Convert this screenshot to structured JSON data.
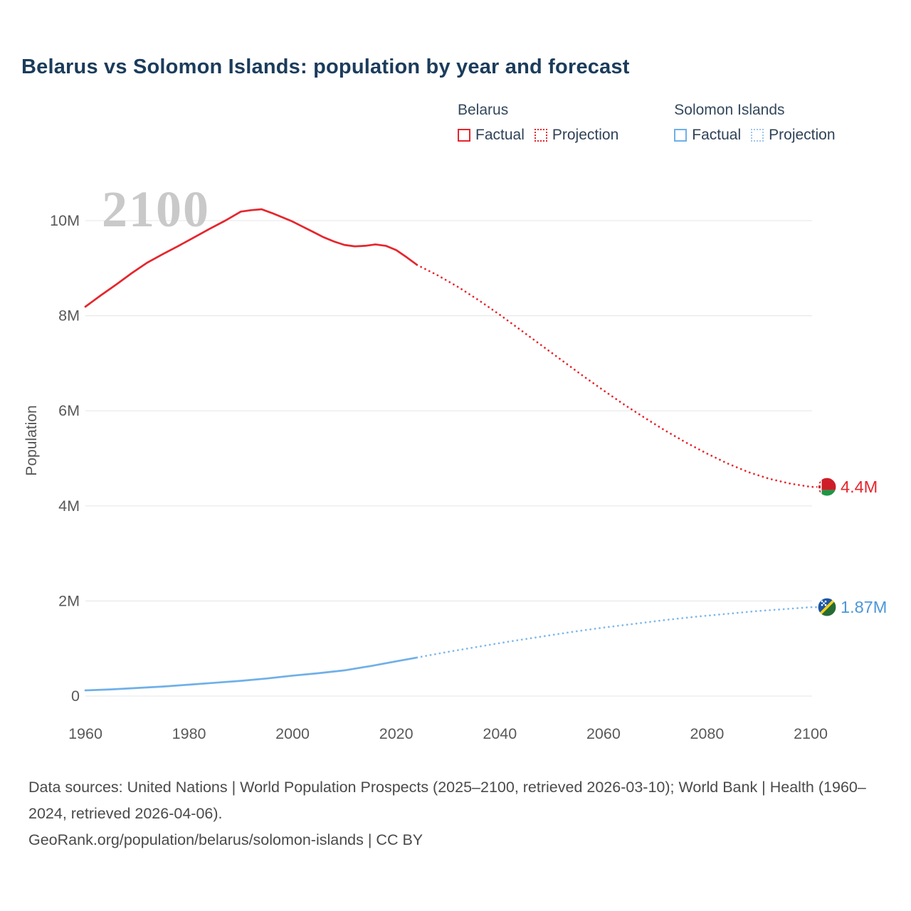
{
  "colors": {
    "belarus": "#e5262d",
    "belarus_label": "#e5262d",
    "solomon_islands": "#6fb0e8",
    "solomon_islands_projection": "#7db8ea",
    "solomon_label": "#4c97d9",
    "title": "#1b3c5c",
    "grid": "#e9e9e9",
    "tick": "#595959",
    "watermark": "#c9c9c9"
  },
  "legend": {
    "belarus": {
      "name": "Belarus",
      "factual": "Factual",
      "projection": "Projection"
    },
    "solomon_islands": {
      "name": "Solomon Islands",
      "factual": "Factual",
      "projection": "Projection"
    }
  },
  "footer": {
    "sources": "Data sources: United Nations | World Population Prospects (2025–2100, retrieved 2026-03-10); World Bank | Health (1960–2024, retrieved 2026-04-06).",
    "attribution": "GeoRank.org/population/belarus/solomon-islands | CC BY"
  },
  "chart_data": {
    "type": "line",
    "title": "Belarus vs Solomon Islands: population by year and forecast",
    "xlabel": "",
    "ylabel": "Population",
    "watermark": "2100",
    "values_unit": "millions",
    "x_ticks": [
      1960,
      1980,
      2000,
      2020,
      2040,
      2060,
      2080,
      2100
    ],
    "y_ticks_millions": [
      0,
      2,
      4,
      6,
      8,
      10
    ],
    "y_tick_labels": [
      "0",
      "2M",
      "4M",
      "6M",
      "8M",
      "10M"
    ],
    "xlim": [
      1958,
      2116
    ],
    "ylim_millions": [
      0,
      10.6
    ],
    "grid": "horizontal",
    "legend_position": "top-right",
    "series": [
      {
        "id": "belarus-factual-line",
        "name": "Belarus Factual",
        "color": "#e5262d",
        "style": "solid",
        "points": [
          [
            1960,
            8.19
          ],
          [
            1963,
            8.43
          ],
          [
            1966,
            8.66
          ],
          [
            1969,
            8.9
          ],
          [
            1972,
            9.12
          ],
          [
            1975,
            9.3
          ],
          [
            1978,
            9.47
          ],
          [
            1981,
            9.65
          ],
          [
            1984,
            9.83
          ],
          [
            1987,
            10.0
          ],
          [
            1990,
            10.19
          ],
          [
            1992,
            10.22
          ],
          [
            1994,
            10.24
          ],
          [
            1996,
            10.16
          ],
          [
            1998,
            10.07
          ],
          [
            2000,
            9.98
          ],
          [
            2002,
            9.87
          ],
          [
            2004,
            9.76
          ],
          [
            2006,
            9.65
          ],
          [
            2008,
            9.56
          ],
          [
            2010,
            9.49
          ],
          [
            2012,
            9.46
          ],
          [
            2014,
            9.47
          ],
          [
            2016,
            9.5
          ],
          [
            2018,
            9.47
          ],
          [
            2020,
            9.38
          ],
          [
            2022,
            9.23
          ],
          [
            2024,
            9.07
          ]
        ]
      },
      {
        "id": "belarus-projection-line",
        "name": "Belarus Projection",
        "color": "#e5262d",
        "style": "dotted",
        "extends_to_flag": true,
        "points": [
          [
            2024,
            9.07
          ],
          [
            2028,
            8.85
          ],
          [
            2032,
            8.6
          ],
          [
            2036,
            8.32
          ],
          [
            2040,
            8.02
          ],
          [
            2044,
            7.7
          ],
          [
            2048,
            7.38
          ],
          [
            2052,
            7.06
          ],
          [
            2056,
            6.74
          ],
          [
            2060,
            6.43
          ],
          [
            2064,
            6.13
          ],
          [
            2068,
            5.85
          ],
          [
            2072,
            5.58
          ],
          [
            2076,
            5.33
          ],
          [
            2080,
            5.1
          ],
          [
            2084,
            4.89
          ],
          [
            2088,
            4.71
          ],
          [
            2092,
            4.57
          ],
          [
            2096,
            4.47
          ],
          [
            2100,
            4.4
          ]
        ]
      },
      {
        "id": "solomon-factual-line",
        "name": "Solomon Islands Factual",
        "color": "#6fb0e8",
        "style": "solid",
        "points": [
          [
            1960,
            0.12
          ],
          [
            1965,
            0.14
          ],
          [
            1970,
            0.17
          ],
          [
            1975,
            0.2
          ],
          [
            1980,
            0.24
          ],
          [
            1985,
            0.28
          ],
          [
            1990,
            0.32
          ],
          [
            1995,
            0.37
          ],
          [
            2000,
            0.43
          ],
          [
            2005,
            0.48
          ],
          [
            2010,
            0.54
          ],
          [
            2015,
            0.63
          ],
          [
            2020,
            0.73
          ],
          [
            2024,
            0.81
          ]
        ]
      },
      {
        "id": "solomon-projection-line",
        "name": "Solomon Islands Projection",
        "color": "#7db8ea",
        "style": "dotted",
        "extends_to_flag": true,
        "points": [
          [
            2024,
            0.81
          ],
          [
            2030,
            0.93
          ],
          [
            2036,
            1.04
          ],
          [
            2042,
            1.15
          ],
          [
            2048,
            1.25
          ],
          [
            2054,
            1.35
          ],
          [
            2060,
            1.44
          ],
          [
            2066,
            1.52
          ],
          [
            2072,
            1.6
          ],
          [
            2078,
            1.67
          ],
          [
            2084,
            1.73
          ],
          [
            2090,
            1.79
          ],
          [
            2095,
            1.83
          ],
          [
            2100,
            1.87
          ]
        ]
      }
    ],
    "end_labels": [
      {
        "text": "4.4M",
        "year": 2100,
        "value_millions": 4.4,
        "color": "#e5262d",
        "flag": "belarus"
      },
      {
        "text": "1.87M",
        "year": 2100,
        "value_millions": 1.87,
        "color": "#4c97d9",
        "flag": "solomon-islands"
      }
    ]
  }
}
